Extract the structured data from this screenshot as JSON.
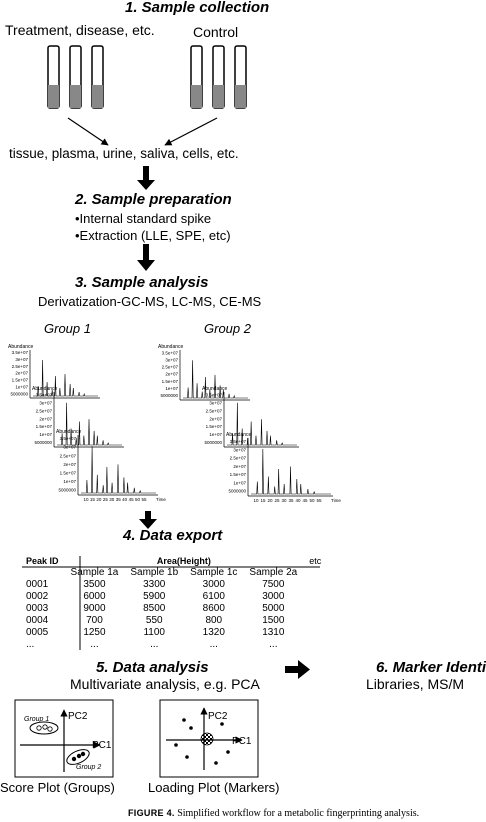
{
  "steps": {
    "collection": {
      "title": "1. Sample collection",
      "treatment_label": "Treatment, disease, etc.",
      "control_label": "Control",
      "sources": "tissue, plasma, urine, saliva, cells, etc."
    },
    "preparation": {
      "title": "2. Sample preparation",
      "bullets": [
        "•Internal standard spike",
        "•Extraction (LLE, SPE, etc)"
      ]
    },
    "analysis": {
      "title": "3. Sample analysis",
      "methods": "Derivatization-GC-MS, LC-MS, CE-MS",
      "group1": "Group 1",
      "group2": "Group 2",
      "abundance_label": "Abundance",
      "time_label": "Time",
      "yticks": [
        "3.5e+07",
        "3e+07",
        "2.5e+07",
        "2e+07",
        "1.5e+07",
        "1e+07",
        "5000000"
      ],
      "xticks": [
        "10",
        "15",
        "20",
        "25",
        "30",
        "35",
        "40",
        "45",
        "50",
        "55"
      ]
    },
    "export": {
      "title": "4. Data export",
      "table": {
        "peak_header": "Peak ID",
        "area_header": "Area(Height)",
        "sample_headers": [
          "Sample 1a",
          "Sample 1b",
          "Sample 1c",
          "Sample 2a"
        ],
        "etc_header": "etc",
        "rows": [
          {
            "id": "0001",
            "values": [
              "3500",
              "3300",
              "3000",
              "7500"
            ]
          },
          {
            "id": "0002",
            "values": [
              "6000",
              "5900",
              "6100",
              "3000"
            ]
          },
          {
            "id": "0003",
            "values": [
              "9000",
              "8500",
              "8600",
              "5000"
            ]
          },
          {
            "id": "0004",
            "values": [
              "700",
              "550",
              "800",
              "1500"
            ]
          },
          {
            "id": "0005",
            "values": [
              "1250",
              "1100",
              "1320",
              "1310"
            ]
          },
          {
            "id": "...",
            "values": [
              "...",
              "...",
              "...",
              "..."
            ]
          }
        ]
      }
    },
    "data_analysis": {
      "title": "5. Data analysis",
      "subtitle": "Multivariate analysis, e.g. PCA",
      "pc1": "PC1",
      "pc2": "PC2",
      "group1": "Group 1",
      "group2": "Group 2",
      "score_caption": "Score Plot (Groups)",
      "loading_caption": "Loading Plot (Markers)"
    },
    "marker": {
      "title": "6. Marker Identi",
      "subtitle": "Libraries, MS/M"
    }
  },
  "caption": {
    "label": "FIGURE 4.",
    "text": "Simplified workflow for a metabolic fingerprinting analysis."
  }
}
